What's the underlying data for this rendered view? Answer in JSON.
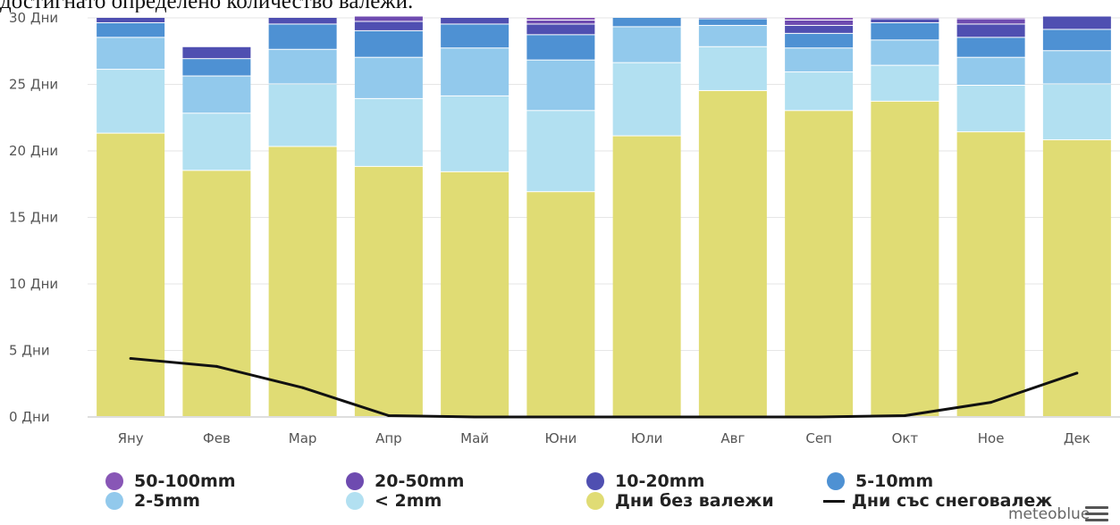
{
  "header_text": "достигнато определено количество валежи.",
  "chart_data": {
    "type": "bar",
    "stacked": true,
    "categories": [
      "Яну",
      "Фев",
      "Мар",
      "Апр",
      "Май",
      "Юни",
      "Юли",
      "Авг",
      "Сеп",
      "Окт",
      "Ное",
      "Дек"
    ],
    "y_ticks": [
      "0 Дни",
      "5 Дни",
      "10 Дни",
      "15 Дни",
      "20 Дни",
      "25 Дни",
      "30 Дни"
    ],
    "ylim": [
      0,
      30
    ],
    "grid": true,
    "series": [
      {
        "name": "Дни без валежи",
        "color": "#e0dc74",
        "values": [
          21.3,
          18.5,
          20.3,
          18.8,
          18.4,
          16.9,
          21.1,
          24.5,
          23.0,
          23.7,
          21.4,
          20.8
        ]
      },
      {
        "name": "< 2mm",
        "color": "#b2e0f1",
        "values": [
          4.8,
          4.3,
          4.7,
          5.1,
          5.7,
          6.1,
          5.5,
          3.3,
          2.9,
          2.7,
          3.5,
          4.2
        ]
      },
      {
        "name": "2-5mm",
        "color": "#92c9ec",
        "values": [
          2.4,
          2.8,
          2.6,
          3.1,
          3.6,
          3.8,
          2.7,
          1.6,
          1.8,
          1.9,
          2.1,
          2.5
        ]
      },
      {
        "name": "5-10mm",
        "color": "#4e91d3",
        "values": [
          1.1,
          1.3,
          1.9,
          2.0,
          1.8,
          1.9,
          0.7,
          0.5,
          1.1,
          1.3,
          1.5,
          1.6
        ]
      },
      {
        "name": "10-20mm",
        "color": "#4f4fb1",
        "values": [
          0.4,
          0.9,
          0.5,
          0.7,
          0.5,
          0.8,
          0.0,
          0.1,
          0.6,
          0.3,
          1.0,
          1.0
        ]
      },
      {
        "name": "20-50mm",
        "color": "#6e4bb0",
        "values": [
          0.0,
          0.0,
          0.0,
          0.4,
          0.0,
          0.3,
          0.0,
          0.0,
          0.4,
          0.1,
          0.4,
          0.0
        ]
      },
      {
        "name": "50-100mm",
        "color": "#8856b6",
        "values": [
          0.0,
          0.0,
          0.0,
          0.0,
          0.0,
          0.2,
          0.0,
          0.0,
          0.2,
          0.0,
          0.1,
          0.0
        ]
      }
    ],
    "line_series": {
      "name": "Дни със снеговалеж",
      "color": "#111111",
      "values": [
        4.4,
        3.8,
        2.2,
        0.1,
        0.0,
        0.0,
        0.0,
        0.0,
        0.0,
        0.1,
        1.1,
        3.3
      ]
    }
  },
  "legend": {
    "items": [
      {
        "label": "50-100mm",
        "color": "#8856b6"
      },
      {
        "label": "20-50mm",
        "color": "#6e4bb0"
      },
      {
        "label": "10-20mm",
        "color": "#4f4fb1"
      },
      {
        "label": "5-10mm",
        "color": "#4e91d3"
      },
      {
        "label": "2-5mm",
        "color": "#92c9ec"
      },
      {
        "label": "< 2mm",
        "color": "#b2e0f1"
      },
      {
        "label": "Дни без валежи",
        "color": "#e0dc74"
      },
      {
        "label": "Дни със снеговалеж",
        "color": "#111111"
      }
    ]
  },
  "brand": "meteoblue"
}
